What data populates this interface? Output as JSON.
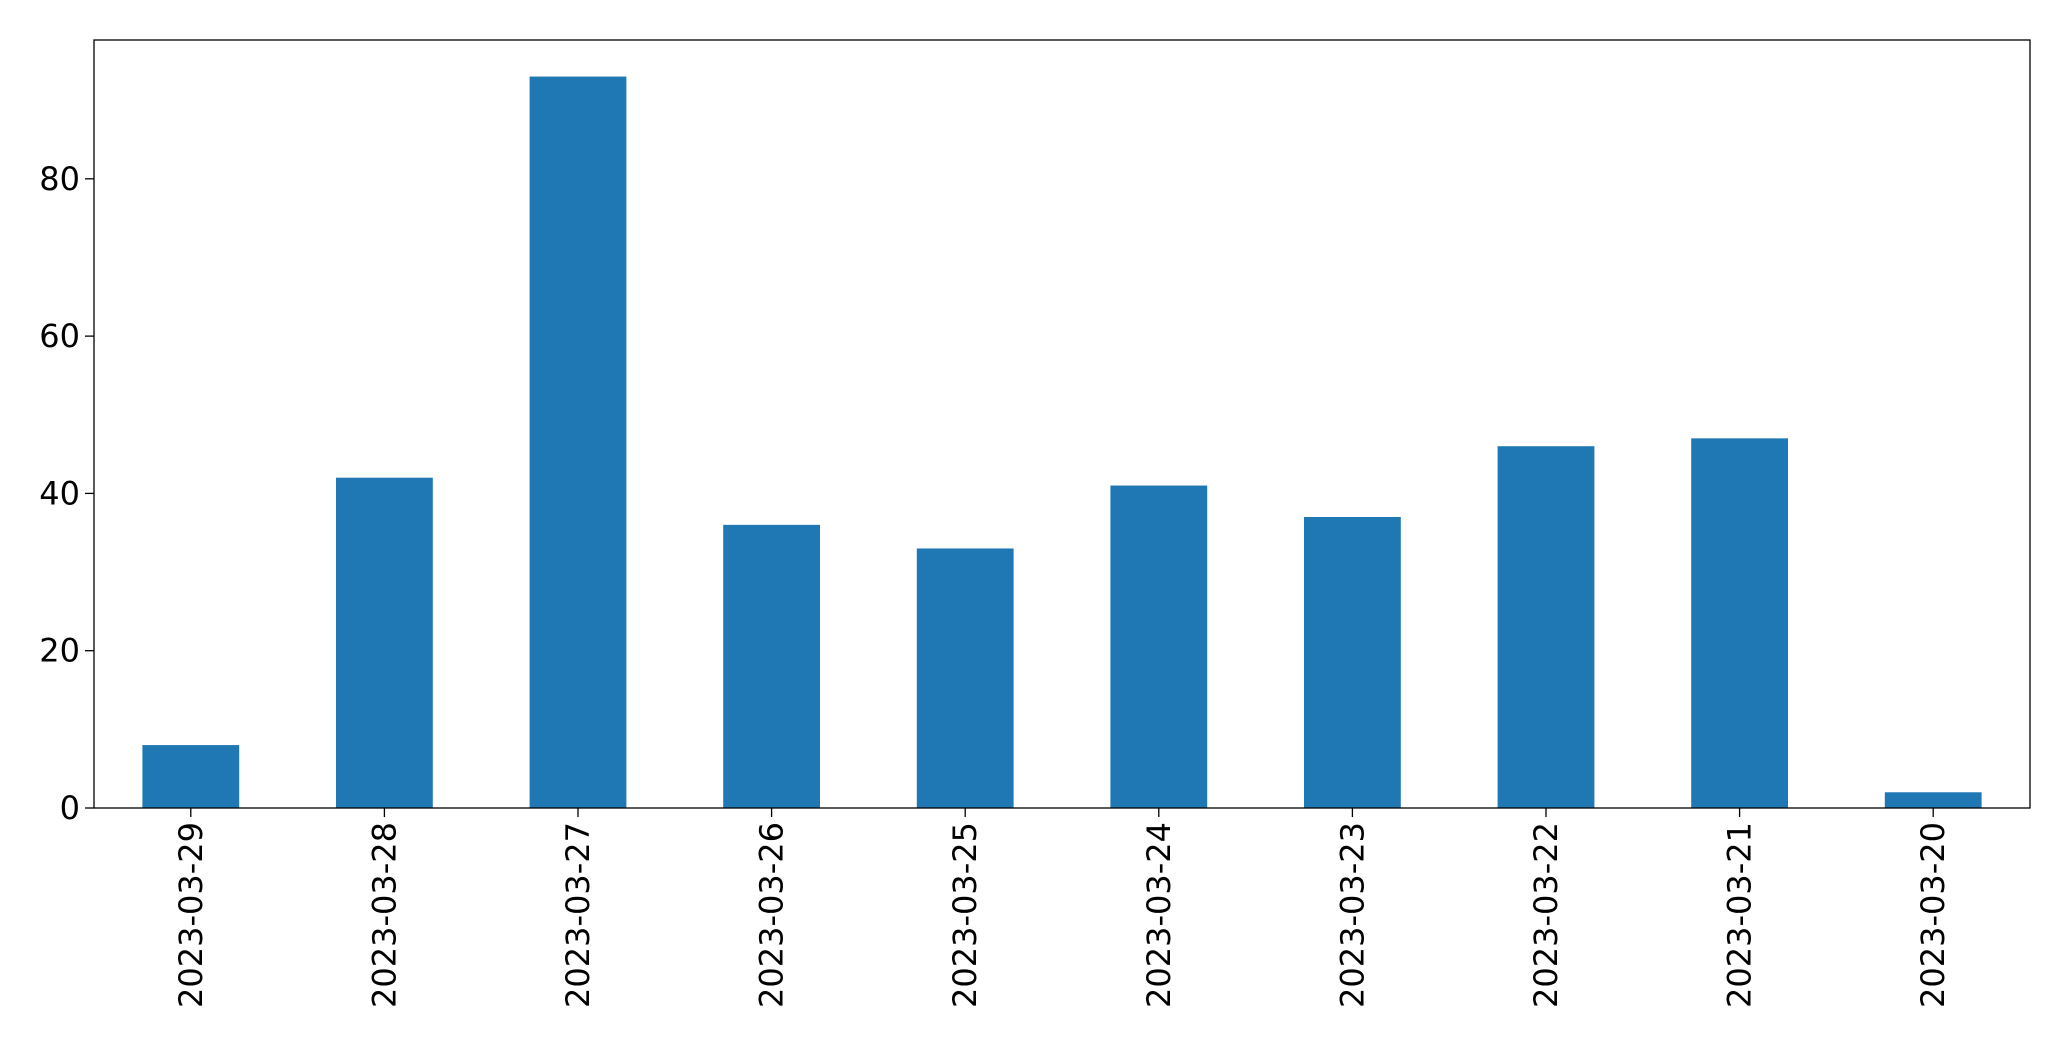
{
  "chart_data": {
    "type": "bar",
    "categories": [
      "2023-03-29",
      "2023-03-28",
      "2023-03-27",
      "2023-03-26",
      "2023-03-25",
      "2023-03-24",
      "2023-03-23",
      "2023-03-22",
      "2023-03-21",
      "2023-03-20"
    ],
    "values": [
      8,
      42,
      93,
      36,
      33,
      41,
      37,
      46,
      47,
      2
    ],
    "color": "#1f77b4",
    "ylim": [
      0,
      97.65
    ],
    "yticks": [
      0,
      20,
      40,
      60,
      80
    ],
    "grid": false
  }
}
